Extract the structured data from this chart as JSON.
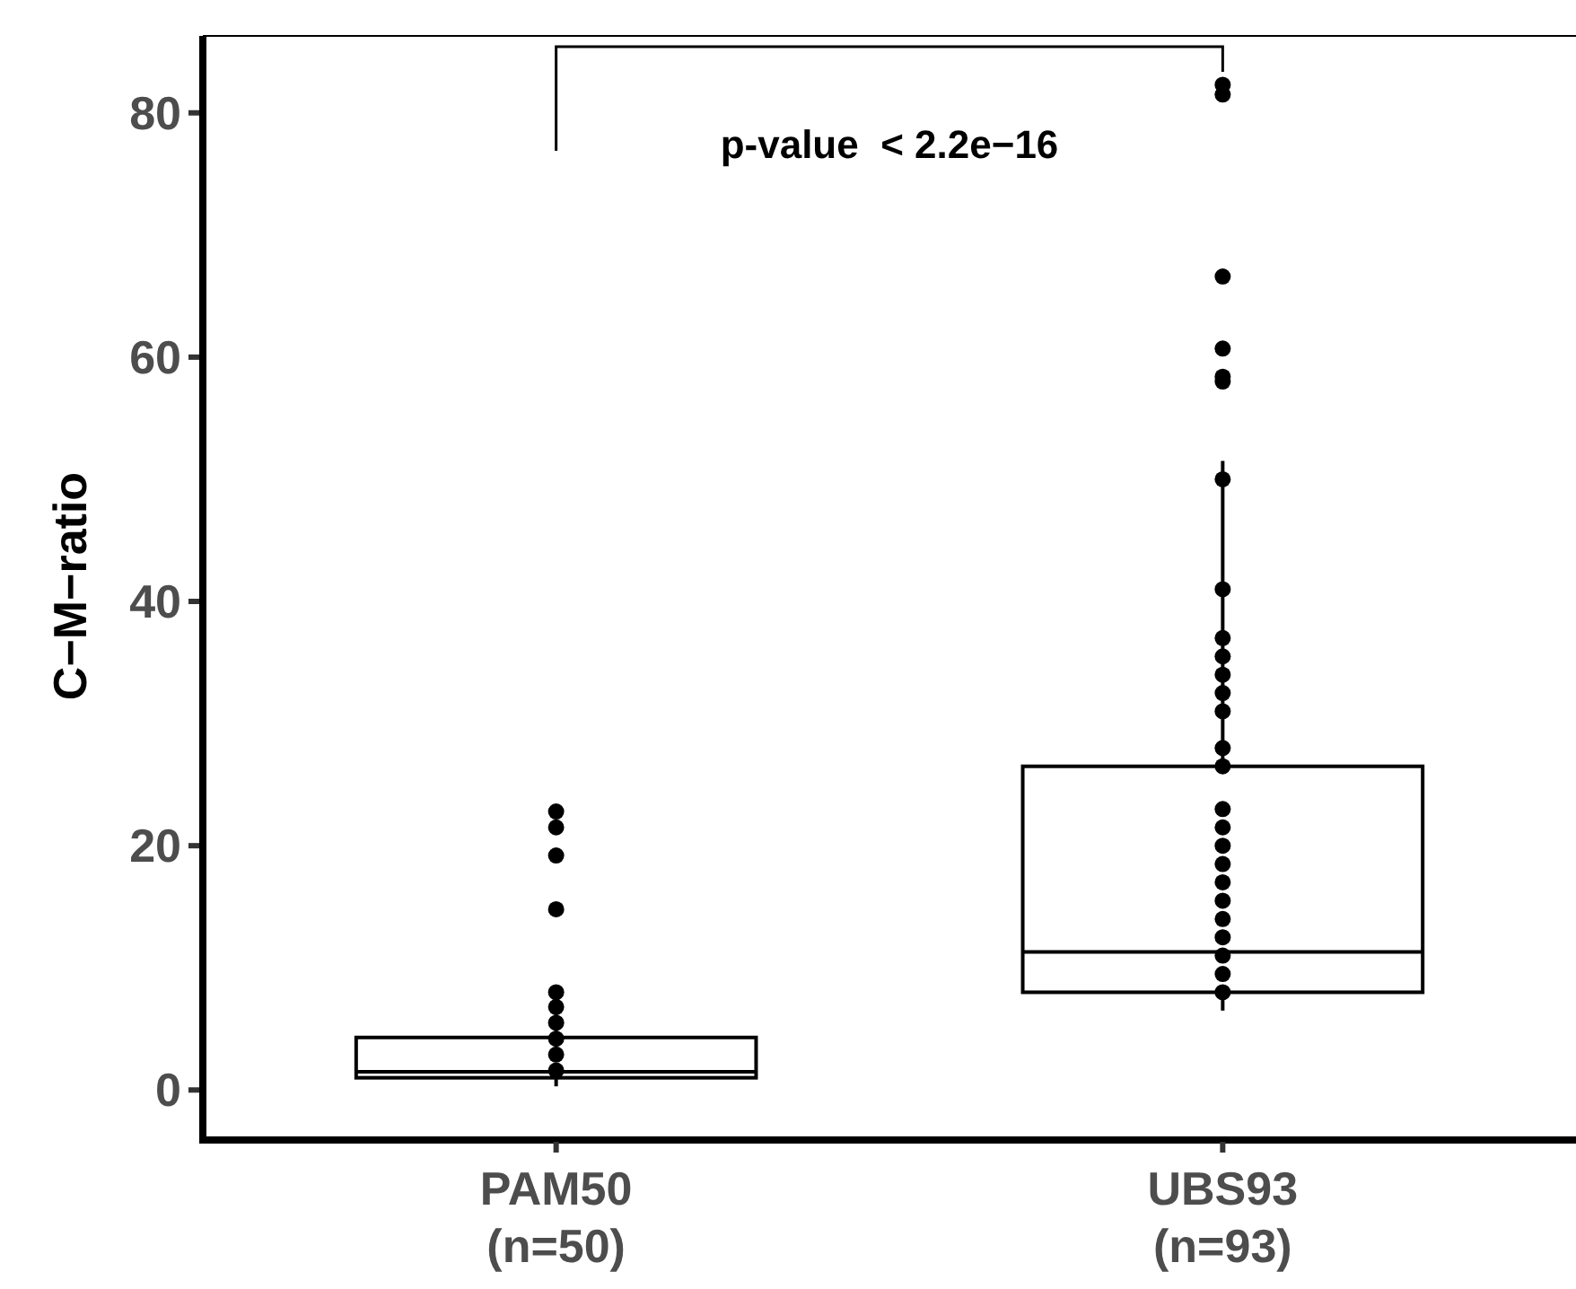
{
  "chart_data": {
    "type": "box",
    "ylabel": "C−M−ratio",
    "categories": [
      "PAM50\n(n=50)",
      "UBS93\n(n=93)"
    ],
    "boxes": [
      {
        "low": 0.3,
        "q1": 1.0,
        "median": 1.5,
        "q3": 4.3,
        "high": 8,
        "outliers": [
          14.8,
          19.2,
          21.5,
          22.8
        ]
      },
      {
        "low": 6.5,
        "q1": 8,
        "median": 11.3,
        "q3": 26.5,
        "high": 51.5,
        "outliers": [
          58,
          58.4,
          60.7,
          66.6,
          81.5,
          82.3
        ]
      }
    ],
    "series": [
      {
        "type": "scatter",
        "color": "#000000",
        "x": [
          "PAM50\n(n=50)",
          "PAM50\n(n=50)",
          "PAM50\n(n=50)",
          "PAM50\n(n=50)",
          "PAM50\n(n=50)",
          "PAM50\n(n=50)"
        ],
        "values": [
          1.6,
          2.9,
          4.2,
          5.5,
          6.8,
          8.0
        ]
      },
      {
        "type": "scatter",
        "color": "#000000",
        "x": [
          "UBS93\n(n=93)",
          "UBS93\n(n=93)",
          "UBS93\n(n=93)",
          "UBS93\n(n=93)",
          "UBS93\n(n=93)",
          "UBS93\n(n=93)",
          "UBS93\n(n=93)",
          "UBS93\n(n=93)",
          "UBS93\n(n=93)",
          "UBS93\n(n=93)",
          "UBS93\n(n=93)",
          "UBS93\n(n=93)",
          "UBS93\n(n=93)",
          "UBS93\n(n=93)",
          "UBS93\n(n=93)",
          "UBS93\n(n=93)",
          "UBS93\n(n=93)",
          "UBS93\n(n=93)",
          "UBS93\n(n=93)",
          "UBS93\n(n=93)"
        ],
        "values": [
          8,
          9.5,
          11,
          12.5,
          14,
          15.5,
          17,
          18.5,
          20,
          21.5,
          23,
          26.5,
          28,
          31,
          32.5,
          34,
          35.5,
          37,
          41,
          50
        ]
      }
    ],
    "ylim": [
      -3.8,
      86.3
    ],
    "yticks": [
      0,
      20,
      40,
      60,
      80
    ],
    "grid": false,
    "annotations": [
      "p-value  < 2.2e−16"
    ]
  }
}
